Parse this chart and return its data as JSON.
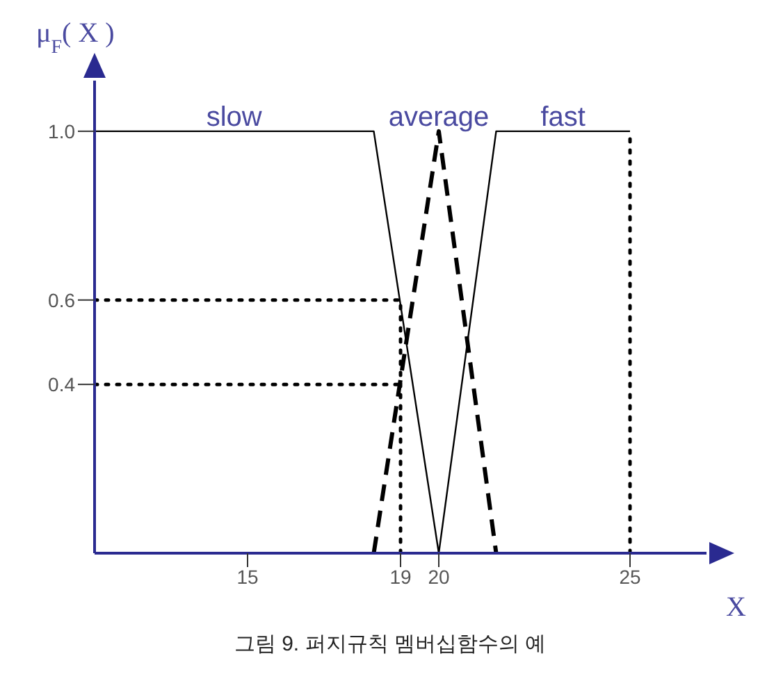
{
  "chart_data": {
    "type": "line",
    "xlabel": "X",
    "ylabel": "μ$_{F}$( X )",
    "annotations": [
      "그림 9. 퍼지규칙 멤버십함수의 예"
    ],
    "xlim": [
      11,
      27
    ],
    "xticks": [
      15,
      19,
      20,
      25
    ],
    "ylim": [
      0,
      1.12
    ],
    "yticks": [
      {
        "value": 0.4,
        "label": "0.4"
      },
      {
        "value": 0.6,
        "label": "0.6"
      },
      {
        "value": 1,
        "label": "1.0"
      }
    ],
    "grid": false,
    "legend": false,
    "marker": "none",
    "series": [
      {
        "name": "slow",
        "color": "#000000",
        "line_style": "solid",
        "x": [
          11,
          18.3,
          20
        ],
        "values": [
          1,
          1,
          0
        ]
      },
      {
        "name": "average",
        "color": "#000000",
        "line_style": "dashed",
        "x": [
          18.3,
          20,
          21.5
        ],
        "values": [
          0,
          1,
          0
        ]
      },
      {
        "name": "fast",
        "color": "#000000",
        "line_style": "solid",
        "x": [
          20,
          21.5,
          25
        ],
        "values": [
          0,
          1,
          1
        ]
      },
      {
        "color": "#000000",
        "line_style": "dotted",
        "x": [
          11,
          19
        ],
        "values": [
          0.6,
          0.6
        ]
      },
      {
        "color": "#000000",
        "line_style": "dotted",
        "x": [
          11,
          19
        ],
        "values": [
          0.4,
          0.4
        ]
      },
      {
        "color": "#000000",
        "line_style": "dotted",
        "x": [
          19,
          19
        ],
        "values": [
          0,
          0.6
        ]
      },
      {
        "color": "#000000",
        "line_style": "dotted",
        "x": [
          25,
          25
        ],
        "values": [
          0,
          1
        ]
      }
    ]
  }
}
